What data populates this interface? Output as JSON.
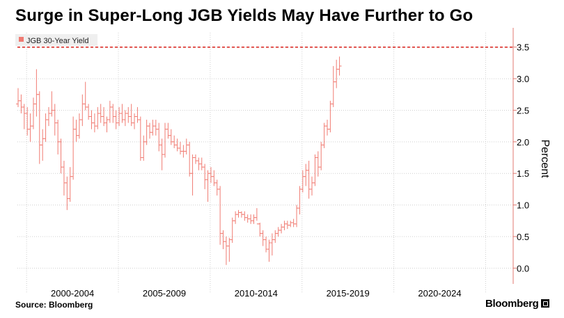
{
  "header": {
    "title": "Surge in Super-Long JGB Yields May Have Further to Go"
  },
  "footer": {
    "source": "Source: Bloomberg",
    "brand": "Bloomberg"
  },
  "colors": {
    "series": "#f07b72",
    "reference_line": "#d8201a",
    "grid": "#cfcfcf",
    "axis": "#e07a72"
  },
  "chart_data": {
    "type": "candlestick-bar",
    "title": "Surge in Super-Long JGB Yields May Have Further to Go",
    "xlabel": "",
    "ylabel": "Percent",
    "ylim": [
      -0.25,
      3.75
    ],
    "yticks": [
      0.0,
      0.5,
      1.0,
      1.5,
      2.0,
      2.5,
      3.0,
      3.5
    ],
    "ytick_labels": [
      "0.0",
      "0.5",
      "1.0",
      "1.5",
      "2.0",
      "2.5",
      "3.0",
      "3.5"
    ],
    "x_range": [
      1999.5,
      2026.5
    ],
    "x_period_labels": [
      "2000-2004",
      "2005-2009",
      "2010-2014",
      "2015-2019",
      "2020-2024"
    ],
    "x_period_centers": [
      2002.5,
      2007.5,
      2012.5,
      2017.5,
      2022.5
    ],
    "x_period_bounds": [
      2000,
      2005,
      2010,
      2015,
      2020,
      2025
    ],
    "reference_line": {
      "y": 3.5,
      "style": "dashed"
    },
    "legend": {
      "label": "JGB 30-Year Yield",
      "position": "top-left"
    },
    "grid": true,
    "series": [
      {
        "name": "JGB 30-Year Yield",
        "bar_interval": "monthly",
        "start": 1999.5,
        "step": 0.1667,
        "bars": [
          [
            2.6,
            2.85,
            2.55,
            2.65
          ],
          [
            2.65,
            2.75,
            2.45,
            2.55
          ],
          [
            2.55,
            2.6,
            2.2,
            2.45
          ],
          [
            2.45,
            2.55,
            2.1,
            2.2
          ],
          [
            2.2,
            2.45,
            2.0,
            2.25
          ],
          [
            2.25,
            2.7,
            2.2,
            2.6
          ],
          [
            2.6,
            3.15,
            2.4,
            2.75
          ],
          [
            2.75,
            2.8,
            1.65,
            1.95
          ],
          [
            1.95,
            2.2,
            1.7,
            2.05
          ],
          [
            2.05,
            2.45,
            2.0,
            2.35
          ],
          [
            2.35,
            2.55,
            2.25,
            2.45
          ],
          [
            2.45,
            2.8,
            2.4,
            2.5
          ],
          [
            2.5,
            2.6,
            2.1,
            2.3
          ],
          [
            2.3,
            2.35,
            1.8,
            2.0
          ],
          [
            2.0,
            2.05,
            1.5,
            1.6
          ],
          [
            1.6,
            1.7,
            1.15,
            1.35
          ],
          [
            1.35,
            1.45,
            0.92,
            1.1
          ],
          [
            1.1,
            1.6,
            1.05,
            1.45
          ],
          [
            1.45,
            2.4,
            1.4,
            2.2
          ],
          [
            2.2,
            2.35,
            2.0,
            2.1
          ],
          [
            2.1,
            2.45,
            2.05,
            2.35
          ],
          [
            2.35,
            2.75,
            2.25,
            2.6
          ],
          [
            2.6,
            2.95,
            2.5,
            2.55
          ],
          [
            2.55,
            2.6,
            2.35,
            2.4
          ],
          [
            2.4,
            2.5,
            2.2,
            2.3
          ],
          [
            2.3,
            2.45,
            2.15,
            2.25
          ],
          [
            2.25,
            2.55,
            2.2,
            2.45
          ],
          [
            2.45,
            2.6,
            2.3,
            2.4
          ],
          [
            2.4,
            2.55,
            2.25,
            2.3
          ],
          [
            2.3,
            2.4,
            2.15,
            2.35
          ],
          [
            2.35,
            2.65,
            2.3,
            2.55
          ],
          [
            2.55,
            2.6,
            2.3,
            2.4
          ],
          [
            2.4,
            2.5,
            2.2,
            2.3
          ],
          [
            2.3,
            2.55,
            2.25,
            2.45
          ],
          [
            2.45,
            2.6,
            2.3,
            2.35
          ],
          [
            2.35,
            2.5,
            2.25,
            2.45
          ],
          [
            2.45,
            2.55,
            2.3,
            2.4
          ],
          [
            2.4,
            2.6,
            2.25,
            2.3
          ],
          [
            2.3,
            2.45,
            2.2,
            2.4
          ],
          [
            2.4,
            2.55,
            2.3,
            2.35
          ],
          [
            2.35,
            2.4,
            1.7,
            1.75
          ],
          [
            1.75,
            2.1,
            1.7,
            2.0
          ],
          [
            2.0,
            2.35,
            1.95,
            2.25
          ],
          [
            2.25,
            2.3,
            2.05,
            2.15
          ],
          [
            2.15,
            2.35,
            2.1,
            2.25
          ],
          [
            2.25,
            2.35,
            2.1,
            2.2
          ],
          [
            2.2,
            2.3,
            1.85,
            1.95
          ],
          [
            1.95,
            2.05,
            1.55,
            1.8
          ],
          [
            1.8,
            2.3,
            1.75,
            2.2
          ],
          [
            2.2,
            2.3,
            2.05,
            2.1
          ],
          [
            2.1,
            2.2,
            1.95,
            2.0
          ],
          [
            2.0,
            2.1,
            1.9,
            1.95
          ],
          [
            1.95,
            2.05,
            1.85,
            1.9
          ],
          [
            1.9,
            2.0,
            1.8,
            1.85
          ],
          [
            1.85,
            1.95,
            1.75,
            1.85
          ],
          [
            1.85,
            2.05,
            1.8,
            1.95
          ],
          [
            1.95,
            2.0,
            1.45,
            1.5
          ],
          [
            1.5,
            1.8,
            1.15,
            1.75
          ],
          [
            1.75,
            1.8,
            1.65,
            1.7
          ],
          [
            1.7,
            1.75,
            1.55,
            1.65
          ],
          [
            1.65,
            1.75,
            1.55,
            1.6
          ],
          [
            1.6,
            1.65,
            1.25,
            1.4
          ],
          [
            1.4,
            1.55,
            1.05,
            1.5
          ],
          [
            1.5,
            1.6,
            1.35,
            1.45
          ],
          [
            1.45,
            1.55,
            1.3,
            1.35
          ],
          [
            1.35,
            1.4,
            1.15,
            1.25
          ],
          [
            1.25,
            1.3,
            0.37,
            0.55
          ],
          [
            0.55,
            0.6,
            0.3,
            0.42
          ],
          [
            0.42,
            0.5,
            0.05,
            0.35
          ],
          [
            0.35,
            0.48,
            0.1,
            0.45
          ],
          [
            0.45,
            0.8,
            0.4,
            0.75
          ],
          [
            0.75,
            0.9,
            0.7,
            0.85
          ],
          [
            0.85,
            0.92,
            0.8,
            0.88
          ],
          [
            0.88,
            0.9,
            0.8,
            0.85
          ],
          [
            0.85,
            0.9,
            0.75,
            0.8
          ],
          [
            0.8,
            0.85,
            0.72,
            0.78
          ],
          [
            0.78,
            0.85,
            0.7,
            0.75
          ],
          [
            0.75,
            0.85,
            0.7,
            0.8
          ],
          [
            0.8,
            0.95,
            0.75,
            0.7
          ],
          [
            0.7,
            0.72,
            0.5,
            0.55
          ],
          [
            0.55,
            0.6,
            0.35,
            0.45
          ],
          [
            0.45,
            0.5,
            0.25,
            0.3
          ],
          [
            0.3,
            0.45,
            0.1,
            0.4
          ],
          [
            0.4,
            0.55,
            0.2,
            0.45
          ],
          [
            0.45,
            0.6,
            0.4,
            0.55
          ],
          [
            0.55,
            0.65,
            0.5,
            0.6
          ],
          [
            0.6,
            0.7,
            0.55,
            0.65
          ],
          [
            0.65,
            0.75,
            0.6,
            0.7
          ],
          [
            0.7,
            0.75,
            0.62,
            0.68
          ],
          [
            0.68,
            0.75,
            0.65,
            0.72
          ],
          [
            0.72,
            0.78,
            0.65,
            0.7
          ],
          [
            0.7,
            1.0,
            0.65,
            0.95
          ],
          [
            0.95,
            1.3,
            0.85,
            1.25
          ],
          [
            1.25,
            1.55,
            1.2,
            1.45
          ],
          [
            1.45,
            1.65,
            1.3,
            1.55
          ],
          [
            1.55,
            1.7,
            1.1,
            1.25
          ],
          [
            1.25,
            1.45,
            1.15,
            1.35
          ],
          [
            1.35,
            1.8,
            1.3,
            1.75
          ],
          [
            1.75,
            1.85,
            1.45,
            1.6
          ],
          [
            1.6,
            2.0,
            1.55,
            1.95
          ],
          [
            1.95,
            2.3,
            1.9,
            2.25
          ],
          [
            2.25,
            2.35,
            2.1,
            2.2
          ],
          [
            2.2,
            2.65,
            2.15,
            2.6
          ],
          [
            2.6,
            3.2,
            2.55,
            2.95
          ],
          [
            2.95,
            3.3,
            2.85,
            3.15
          ],
          [
            3.15,
            3.35,
            3.05,
            3.2
          ]
        ]
      }
    ]
  }
}
